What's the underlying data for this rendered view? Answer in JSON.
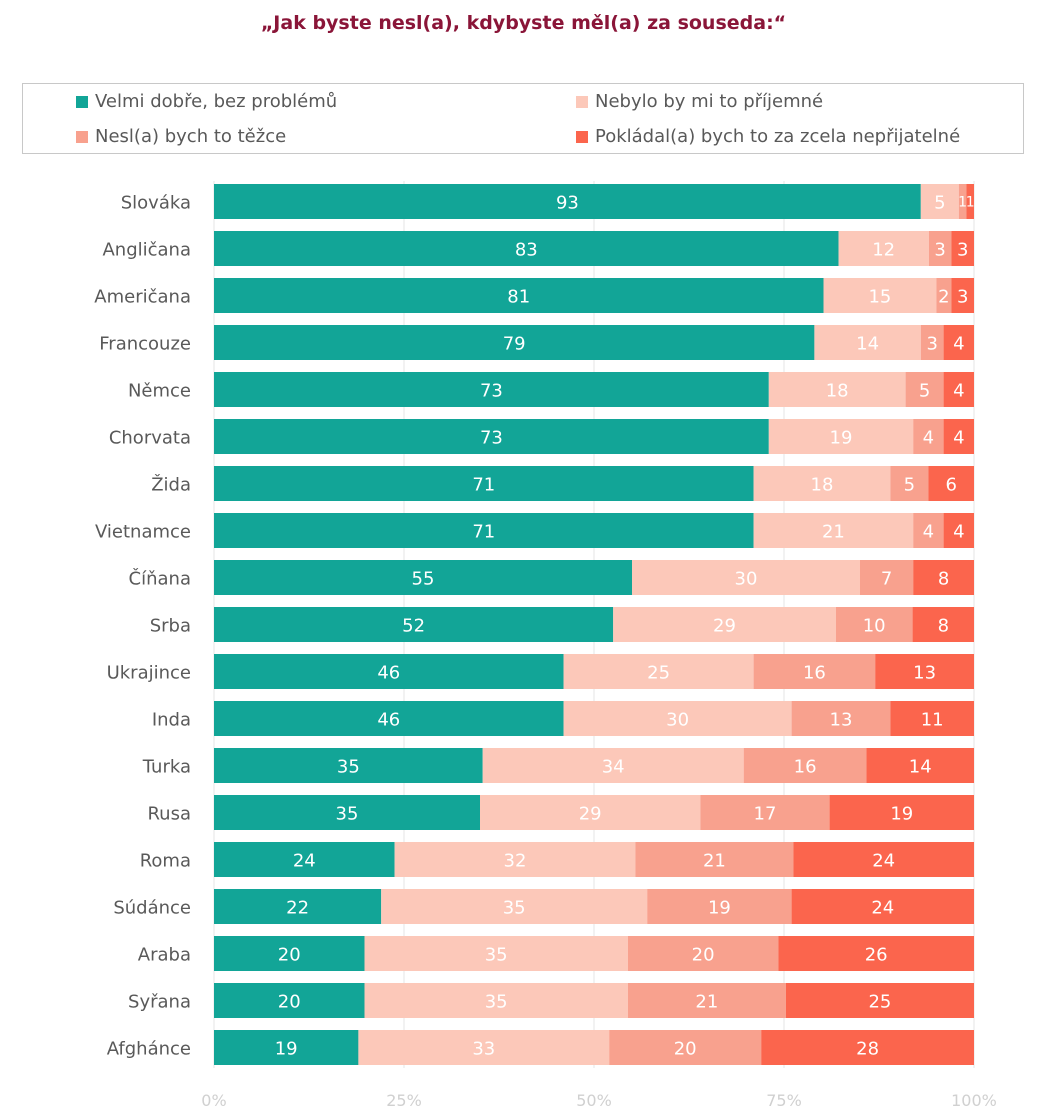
{
  "title": "„Jak byste nesl(a), kdybyste měl(a) za souseda:“",
  "colors": {
    "title": "#8a1538",
    "series": [
      "#12a597",
      "#fcc8b9",
      "#f8a18e",
      "#fb654d"
    ],
    "label_on_dark": "#ffffff",
    "label_on_light": "#ffffff"
  },
  "chart_data": {
    "type": "bar",
    "orientation": "horizontal",
    "stacked": true,
    "normalized": true,
    "title": "„Jak byste nesl(a), kdybyste měl(a) za souseda:“",
    "categories": [
      "Slováka",
      "Angličana",
      "Američana",
      "Francouze",
      "Němce",
      "Chorvata",
      "Žida",
      "Vietnamce",
      "Číňana",
      "Srba",
      "Ukrajince",
      "Inda",
      "Turka",
      "Rusa",
      "Roma",
      "Súdánce",
      "Araba",
      "Syřana",
      "Afghánce"
    ],
    "series": [
      {
        "name": "Velmi dobře, bez problémů",
        "values": [
          93,
          83,
          81,
          79,
          73,
          73,
          71,
          71,
          55,
          52,
          46,
          46,
          35,
          35,
          24,
          22,
          20,
          20,
          19
        ]
      },
      {
        "name": "Nebylo by mi to příjemné",
        "values": [
          5,
          12,
          15,
          14,
          18,
          19,
          18,
          21,
          30,
          29,
          25,
          30,
          34,
          29,
          32,
          35,
          35,
          35,
          33
        ]
      },
      {
        "name": "Nesl(a) bych to těžce",
        "values": [
          1,
          3,
          2,
          3,
          5,
          4,
          5,
          4,
          7,
          10,
          16,
          13,
          16,
          17,
          21,
          19,
          20,
          21,
          20
        ]
      },
      {
        "name": "Pokládal(a) bych to za zcela nepřijatelné",
        "values": [
          1,
          3,
          3,
          4,
          4,
          4,
          6,
          4,
          8,
          8,
          13,
          11,
          14,
          19,
          24,
          24,
          26,
          25,
          28
        ]
      }
    ],
    "x_ticks": [
      "0%",
      "25%",
      "50%",
      "75%",
      "100%"
    ],
    "xlim": [
      0,
      100
    ],
    "grid": true,
    "legend": "top"
  }
}
